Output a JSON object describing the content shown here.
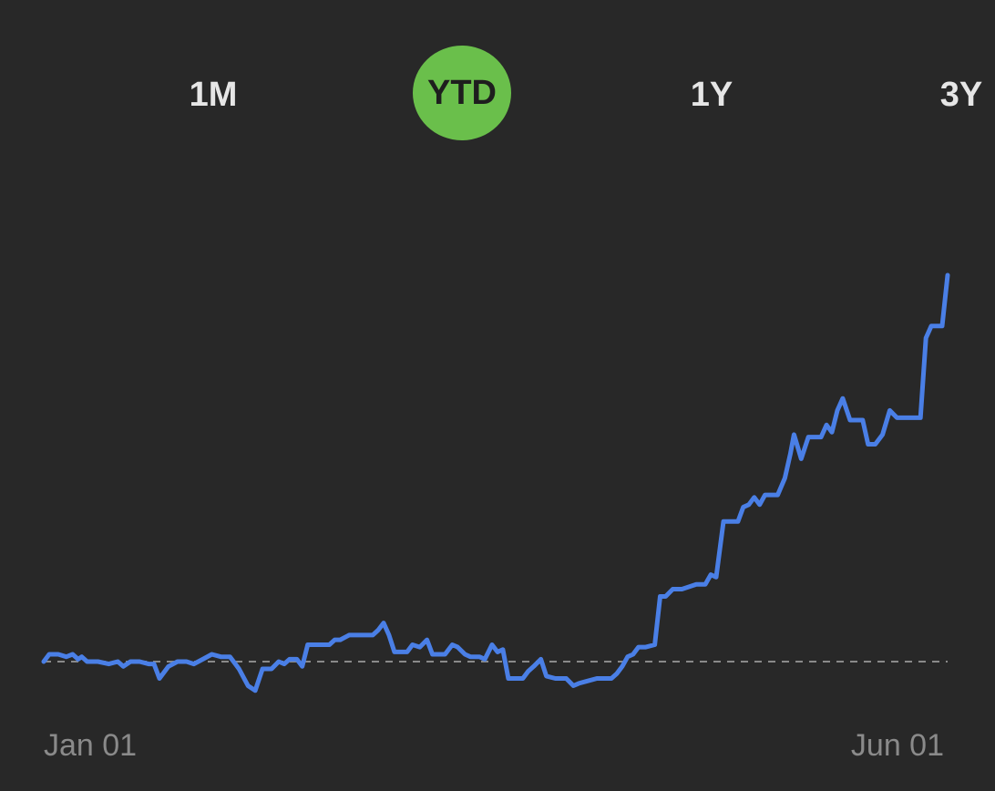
{
  "range_tabs": [
    {
      "label": "1M",
      "active": false
    },
    {
      "label": "YTD",
      "active": true
    },
    {
      "label": "1Y",
      "active": false
    },
    {
      "label": "3Y",
      "active": false
    }
  ],
  "colors": {
    "background": "#282828",
    "line": "#4a7fe6",
    "active_tab": "#6abf4b",
    "baseline": "#8a8a8a",
    "tick_text": "#8a8a8a"
  },
  "chart_data": {
    "type": "line",
    "x_tick_labels": [
      "Jan 01",
      "Jun 01"
    ],
    "xlim": [
      0,
      100
    ],
    "ylim": [
      -10,
      170
    ],
    "baseline": 0,
    "grid": false,
    "legend": "none",
    "series": [
      {
        "values": [
          [
            0.0,
            0.0
          ],
          [
            0.6,
            1.5
          ],
          [
            1.6,
            1.5
          ],
          [
            2.5,
            1.0
          ],
          [
            3.2,
            1.5
          ],
          [
            3.8,
            0.5
          ],
          [
            4.2,
            1.0
          ],
          [
            4.8,
            0.0
          ],
          [
            6.0,
            0.0
          ],
          [
            7.2,
            -0.5
          ],
          [
            8.2,
            0.0
          ],
          [
            8.8,
            -1.0
          ],
          [
            9.6,
            0.0
          ],
          [
            10.6,
            0.0
          ],
          [
            11.6,
            -0.5
          ],
          [
            12.2,
            -0.5
          ],
          [
            12.8,
            -3.5
          ],
          [
            13.8,
            -1.0
          ],
          [
            14.8,
            0.0
          ],
          [
            15.8,
            0.0
          ],
          [
            16.6,
            -0.5
          ],
          [
            17.6,
            0.5
          ],
          [
            18.6,
            1.5
          ],
          [
            19.6,
            1.0
          ],
          [
            20.6,
            1.0
          ],
          [
            21.6,
            -1.5
          ],
          [
            22.6,
            -5.0
          ],
          [
            23.4,
            -6.0
          ],
          [
            24.2,
            -1.5
          ],
          [
            25.2,
            -1.5
          ],
          [
            26.0,
            0.0
          ],
          [
            26.6,
            -0.5
          ],
          [
            27.2,
            0.5
          ],
          [
            28.0,
            0.5
          ],
          [
            28.6,
            -1.0
          ],
          [
            29.2,
            3.5
          ],
          [
            30.2,
            3.5
          ],
          [
            30.8,
            3.5
          ],
          [
            31.6,
            3.5
          ],
          [
            32.2,
            4.5
          ],
          [
            32.8,
            4.5
          ],
          [
            33.8,
            5.5
          ],
          [
            34.6,
            5.5
          ],
          [
            35.6,
            5.5
          ],
          [
            36.4,
            5.5
          ],
          [
            37.0,
            6.5
          ],
          [
            37.6,
            8.0
          ],
          [
            38.2,
            5.5
          ],
          [
            38.8,
            2.0
          ],
          [
            39.6,
            2.0
          ],
          [
            40.2,
            2.0
          ],
          [
            40.8,
            3.5
          ],
          [
            41.6,
            3.0
          ],
          [
            42.4,
            4.5
          ],
          [
            43.0,
            1.5
          ],
          [
            43.6,
            1.5
          ],
          [
            44.4,
            1.5
          ],
          [
            45.2,
            3.5
          ],
          [
            45.8,
            3.0
          ],
          [
            46.6,
            1.5
          ],
          [
            47.2,
            1.0
          ],
          [
            48.2,
            1.0
          ],
          [
            48.8,
            0.5
          ],
          [
            49.6,
            3.5
          ],
          [
            50.2,
            2.0
          ],
          [
            50.8,
            2.5
          ],
          [
            51.4,
            -3.5
          ],
          [
            52.4,
            -3.5
          ],
          [
            53.0,
            -3.5
          ],
          [
            53.6,
            -2.0
          ],
          [
            54.2,
            -1.0
          ],
          [
            55.0,
            0.5
          ],
          [
            55.6,
            -3.0
          ],
          [
            56.6,
            -3.5
          ],
          [
            57.2,
            -3.5
          ],
          [
            57.8,
            -3.5
          ],
          [
            58.6,
            -5.0
          ],
          [
            59.2,
            -4.5
          ],
          [
            60.2,
            -4.0
          ],
          [
            61.2,
            -3.5
          ],
          [
            62.2,
            -3.5
          ],
          [
            62.8,
            -3.5
          ],
          [
            63.4,
            -2.5
          ],
          [
            64.0,
            -1.0
          ],
          [
            64.6,
            1.0
          ],
          [
            65.2,
            1.5
          ],
          [
            65.8,
            3.0
          ],
          [
            66.6,
            3.0
          ],
          [
            67.6,
            3.5
          ],
          [
            68.2,
            13.5
          ],
          [
            68.8,
            13.5
          ],
          [
            69.6,
            15.0
          ],
          [
            70.6,
            15.0
          ],
          [
            71.4,
            15.5
          ],
          [
            72.2,
            16.0
          ],
          [
            73.2,
            16.0
          ],
          [
            73.8,
            18.0
          ],
          [
            74.4,
            17.5
          ],
          [
            75.2,
            29.0
          ],
          [
            76.0,
            29.0
          ],
          [
            76.8,
            29.0
          ],
          [
            77.4,
            32.0
          ],
          [
            78.0,
            32.5
          ],
          [
            78.6,
            34.0
          ],
          [
            79.2,
            32.5
          ],
          [
            79.8,
            34.5
          ],
          [
            80.6,
            34.5
          ],
          [
            81.2,
            34.5
          ],
          [
            82.0,
            38.0
          ],
          [
            82.6,
            43.0
          ],
          [
            83.0,
            47.0
          ],
          [
            83.8,
            42.0
          ],
          [
            84.6,
            46.5
          ],
          [
            85.4,
            46.5
          ],
          [
            86.0,
            46.5
          ],
          [
            86.6,
            49.0
          ],
          [
            87.2,
            47.5
          ],
          [
            87.8,
            52.0
          ],
          [
            88.4,
            54.5
          ],
          [
            89.2,
            50.0
          ],
          [
            90.0,
            50.0
          ],
          [
            90.6,
            50.0
          ],
          [
            91.2,
            45.0
          ],
          [
            92.0,
            45.0
          ],
          [
            92.8,
            47.0
          ],
          [
            93.6,
            52.0
          ],
          [
            94.4,
            50.5
          ],
          [
            95.2,
            50.5
          ],
          [
            95.8,
            50.5
          ],
          [
            96.4,
            50.5
          ],
          [
            97.0,
            50.5
          ],
          [
            97.6,
            67.0
          ],
          [
            98.2,
            69.5
          ],
          [
            98.8,
            69.5
          ],
          [
            99.4,
            69.5
          ],
          [
            100.0,
            80.0
          ]
        ]
      }
    ]
  }
}
